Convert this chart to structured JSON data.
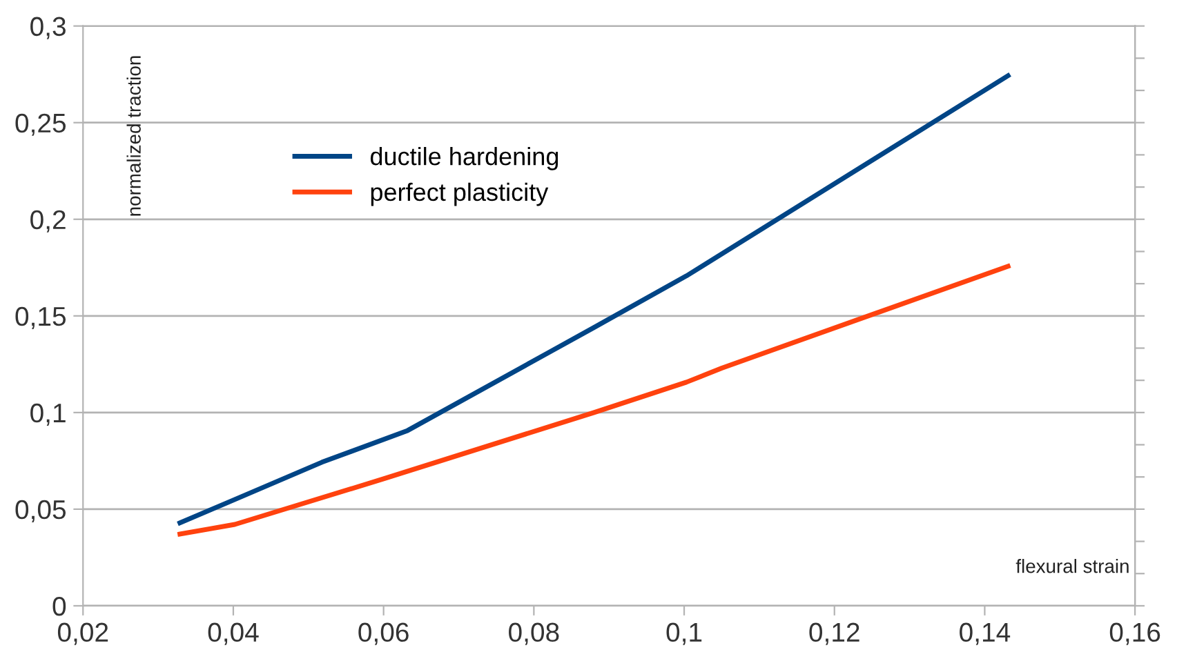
{
  "chart_data": {
    "type": "line",
    "xlabel": "flexural strain",
    "ylabel": "normalized traction",
    "xlim": [
      0.02,
      0.16
    ],
    "ylim": [
      0,
      0.3
    ],
    "xticks": [
      {
        "value": 0.02,
        "label": "0,02"
      },
      {
        "value": 0.04,
        "label": "0,04"
      },
      {
        "value": 0.06,
        "label": "0,06"
      },
      {
        "value": 0.08,
        "label": "0,08"
      },
      {
        "value": 0.1,
        "label": "0,1"
      },
      {
        "value": 0.12,
        "label": "0,12"
      },
      {
        "value": 0.14,
        "label": "0,14"
      },
      {
        "value": 0.16,
        "label": "0,16"
      }
    ],
    "yticks": [
      0,
      {
        "value": 0.05,
        "label": "0,05"
      },
      {
        "value": 0.1,
        "label": "0,1"
      },
      {
        "value": 0.15,
        "label": "0,15"
      },
      {
        "value": 0.2,
        "label": "0,2"
      },
      {
        "value": 0.25,
        "label": "0,25"
      },
      {
        "value": 0.3,
        "label": "0,3"
      }
    ],
    "grid": "y",
    "legend": "top left",
    "marker": "none",
    "line_style": "solid",
    "series": [
      {
        "name": "ductile hardening",
        "color": "#004586",
        "x": [
          0.0329,
          0.0402,
          0.0518,
          0.0632,
          0.088,
          0.1003,
          0.1431
        ],
        "values": [
          0.0429,
          0.055,
          0.0743,
          0.0907,
          0.144,
          0.1707,
          0.2743
        ]
      },
      {
        "name": "perfect plasticity",
        "color": "#ff420e",
        "x": [
          0.0329,
          0.0402,
          0.06,
          0.088,
          0.1003,
          0.105,
          0.1431
        ],
        "values": [
          0.0371,
          0.0421,
          0.0657,
          0.1,
          0.1157,
          0.123,
          0.1757
        ]
      }
    ]
  }
}
